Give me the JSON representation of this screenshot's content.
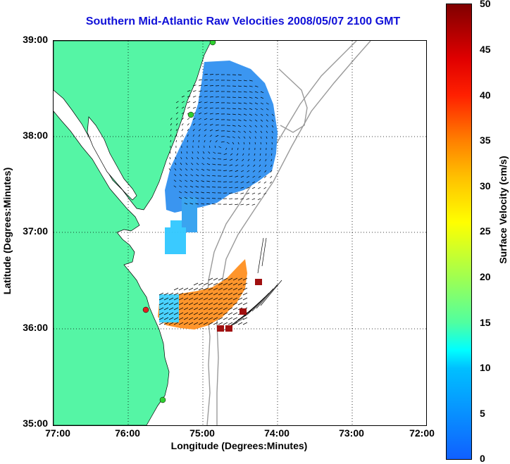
{
  "title": "Southern Mid-Atlantic Raw Velocities 2008/05/07 2100 GMT",
  "axes": {
    "xlabel": "Longitude (Degrees:Minutes)",
    "ylabel": "Latitude (Degrees:Minutes)",
    "lat_ticks": [
      "39:00",
      "38:00",
      "37:00",
      "36:00",
      "35:00"
    ],
    "lon_ticks": [
      "77:00",
      "76:00",
      "75:00",
      "74:00",
      "73:00",
      "72:00"
    ],
    "lat_range": [
      35,
      39
    ],
    "lon_range": [
      -77,
      -72
    ]
  },
  "colorbar": {
    "title": "Surface Velocity (cm/s)",
    "ticks": [
      "50",
      "45",
      "40",
      "35",
      "30",
      "25",
      "20",
      "15",
      "10",
      "5",
      "0"
    ],
    "range": [
      0,
      50
    ]
  },
  "colors": {
    "land": "#55f5a5",
    "title": "#1010d8",
    "bathymetry": "#9a9a9a",
    "gridline": "#000000"
  },
  "stations": [
    {
      "type": "site",
      "color": "#30d030"
    },
    {
      "type": "site",
      "color": "#30d030"
    },
    {
      "type": "site",
      "color": "#30d030"
    },
    {
      "type": "site",
      "color": "#e02020"
    }
  ]
}
